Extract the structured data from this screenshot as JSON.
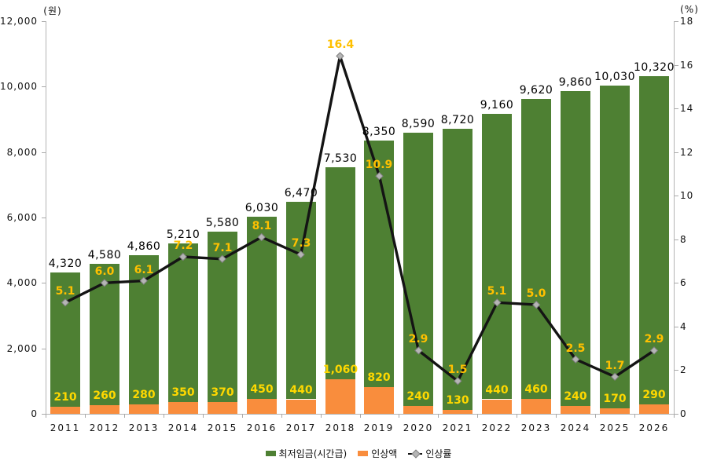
{
  "chart_data": {
    "type": "bar",
    "subtype": "stacked-bars-with-line-overlay",
    "categories": [
      "2011",
      "2012",
      "2013",
      "2014",
      "2015",
      "2016",
      "2017",
      "2018",
      "2019",
      "2020",
      "2021",
      "2022",
      "2023",
      "2024",
      "2025",
      "2026"
    ],
    "series": [
      {
        "name": "최저임금(시간급)",
        "kind": "bar",
        "color": "#4e8033",
        "values": [
          4320,
          4580,
          4860,
          5210,
          5580,
          6030,
          6470,
          7530,
          8350,
          8590,
          8720,
          9160,
          9620,
          9860,
          10030,
          10320
        ],
        "labels": [
          "4,320",
          "4,580",
          "4,860",
          "5,210",
          "5,580",
          "6,030",
          "6,470",
          "7,530",
          "8,350",
          "8,590",
          "8,720",
          "9,160",
          "9,620",
          "9,860",
          "10,030",
          "10,320"
        ],
        "label_color": "#000000"
      },
      {
        "name": "인상액",
        "kind": "bar",
        "color": "#f98d3d",
        "values": [
          210,
          260,
          280,
          350,
          370,
          450,
          440,
          1060,
          820,
          240,
          130,
          440,
          460,
          240,
          170,
          290
        ],
        "labels": [
          "210",
          "260",
          "280",
          "350",
          "370",
          "450",
          "440",
          "1,060",
          "820",
          "240",
          "130",
          "440",
          "460",
          "240",
          "170",
          "290"
        ],
        "label_color": "#ffd800"
      },
      {
        "name": "인상률",
        "kind": "line",
        "color": "#141414",
        "marker_color": "#b5b5b5",
        "values": [
          5.1,
          6.0,
          6.1,
          7.2,
          7.1,
          8.1,
          7.3,
          16.4,
          10.9,
          2.9,
          1.5,
          5.1,
          5.0,
          2.5,
          1.7,
          2.9
        ],
        "labels": [
          "5.1",
          "6.0",
          "6.1",
          "7.2",
          "7.1",
          "8.1",
          "7.3",
          "16.4",
          "10.9",
          "2.9",
          "1.5",
          "5.1",
          "5.0",
          "2.5",
          "1.7",
          "2.9"
        ],
        "label_color": "#ffc000"
      }
    ],
    "left_axis": {
      "unit": "(원)",
      "min": 0,
      "max": 12000,
      "step": 2000,
      "tick_labels": [
        "0",
        "2,000",
        "4,000",
        "6,000",
        "8,000",
        "10,000",
        "12,000"
      ],
      "tick_values": [
        0,
        2000,
        4000,
        6000,
        8000,
        10000,
        12000
      ]
    },
    "right_axis": {
      "unit": "(%)",
      "min": 0,
      "max": 18,
      "step": 2,
      "tick_labels": [
        "0",
        "2",
        "4",
        "6",
        "8",
        "10",
        "12",
        "14",
        "16",
        "18"
      ],
      "tick_values": [
        0,
        2,
        4,
        6,
        8,
        10,
        12,
        14,
        16,
        18
      ]
    },
    "grid": false,
    "legend_position": "bottom-center"
  }
}
